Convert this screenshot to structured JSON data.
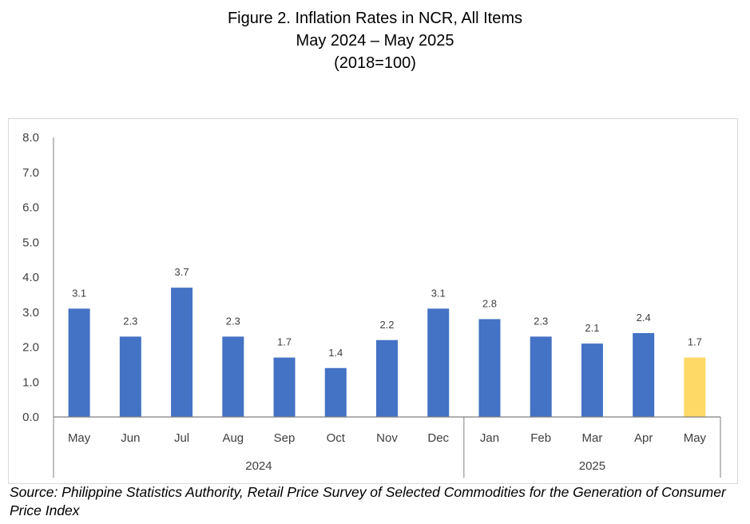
{
  "title": {
    "line1": "Figure 2. Inflation Rates in NCR, All Items",
    "line2": "May 2024 – May 2025",
    "line3": "(2018=100)"
  },
  "source_text": "Source: Philippine Statistics Authority, Retail Price Survey of Selected Commodities for the Generation of Consumer Price Index",
  "colors": {
    "bar": "#4472C4",
    "highlight": "#FFD966",
    "axis": "#7f7f7f"
  },
  "chart_data": {
    "type": "bar",
    "categories": [
      "May",
      "Jun",
      "Jul",
      "Aug",
      "Sep",
      "Oct",
      "Nov",
      "Dec",
      "Jan",
      "Feb",
      "Mar",
      "Apr",
      "May"
    ],
    "groups": [
      {
        "label": "2024",
        "count": 8
      },
      {
        "label": "2025",
        "count": 5
      }
    ],
    "values": [
      3.1,
      2.3,
      3.7,
      2.3,
      1.7,
      1.4,
      2.2,
      3.1,
      2.8,
      2.3,
      2.1,
      2.4,
      1.7
    ],
    "data_labels": [
      "3.1",
      "2.3",
      "3.7",
      "2.3",
      "1.7",
      "1.4",
      "2.2",
      "3.1",
      "2.8",
      "2.3",
      "2.1",
      "2.4",
      "1.7"
    ],
    "highlight_index": 12,
    "ylim": [
      0,
      8
    ],
    "yticks": [
      "0.0",
      "1.0",
      "2.0",
      "3.0",
      "4.0",
      "5.0",
      "6.0",
      "7.0",
      "8.0"
    ],
    "grid": false,
    "legend": "none"
  }
}
